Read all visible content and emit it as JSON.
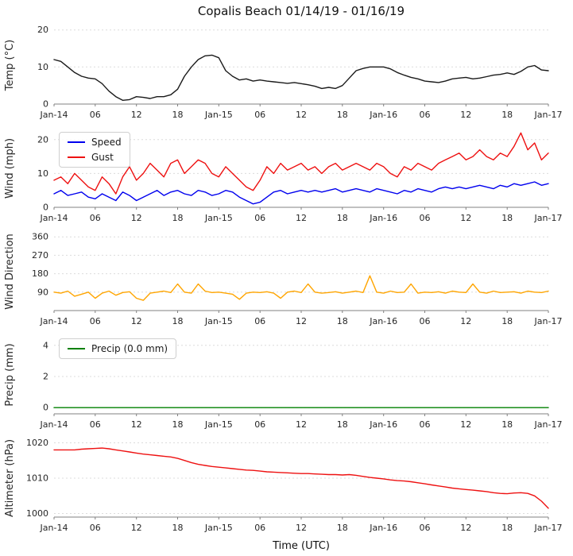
{
  "title": "Copalis Beach 01/14/19 - 01/16/19",
  "xlabel": "Time (UTC)",
  "x_range": [
    0,
    72
  ],
  "x_ticks": {
    "positions": [
      0,
      6,
      12,
      18,
      24,
      30,
      36,
      42,
      48,
      54,
      60,
      66,
      72
    ],
    "labels": [
      "Jan-14",
      "06",
      "12",
      "18",
      "Jan-15",
      "06",
      "12",
      "18",
      "Jan-16",
      "06",
      "12",
      "18",
      "Jan-17"
    ]
  },
  "x_hours": [
    0,
    1,
    2,
    3,
    4,
    5,
    6,
    7,
    8,
    9,
    10,
    11,
    12,
    13,
    14,
    15,
    16,
    17,
    18,
    19,
    20,
    21,
    22,
    23,
    24,
    25,
    26,
    27,
    28,
    29,
    30,
    31,
    32,
    33,
    34,
    35,
    36,
    37,
    38,
    39,
    40,
    41,
    42,
    43,
    44,
    45,
    46,
    47,
    48,
    49,
    50,
    51,
    52,
    53,
    54,
    55,
    56,
    57,
    58,
    59,
    60,
    61,
    62,
    63,
    64,
    65,
    66,
    67,
    68,
    69,
    70,
    71,
    72
  ],
  "chart_data": [
    {
      "type": "line",
      "name": "temperature",
      "ylabel": "Temp (°C)",
      "ylim": [
        0,
        21
      ],
      "yticks": [
        0,
        10,
        20
      ],
      "grid": true,
      "series": [
        {
          "key": "temp",
          "name": "Temp",
          "color": "#1a1a1a",
          "values": [
            12,
            11.5,
            10,
            8.5,
            7.5,
            7,
            6.8,
            5.5,
            3.5,
            2,
            1,
            1.2,
            2,
            1.8,
            1.5,
            2,
            2,
            2.5,
            4,
            7.5,
            10,
            12,
            13,
            13.2,
            12.5,
            9,
            7.5,
            6.5,
            6.8,
            6.2,
            6.5,
            6.2,
            6,
            5.8,
            5.6,
            5.8,
            5.5,
            5.2,
            4.8,
            4.2,
            4.5,
            4.2,
            5,
            7,
            9,
            9.6,
            10,
            10,
            10,
            9.5,
            8.5,
            7.8,
            7.2,
            6.8,
            6.2,
            6,
            5.8,
            6.2,
            6.8,
            7,
            7.2,
            6.8,
            7,
            7.4,
            7.8,
            8,
            8.4,
            8,
            8.8,
            10,
            10.4,
            9.2,
            9
          ]
        }
      ]
    },
    {
      "type": "line",
      "name": "wind",
      "ylabel": "Wind (mph)",
      "ylim": [
        0,
        23
      ],
      "yticks": [
        0,
        10,
        20
      ],
      "grid": true,
      "legend_position": "upper left",
      "series": [
        {
          "key": "speed",
          "name": "Speed",
          "color": "#0000ee",
          "values": [
            4,
            5,
            3.5,
            4,
            4.5,
            3,
            2.5,
            4,
            3,
            2,
            4.5,
            3.5,
            2,
            3,
            4,
            5,
            3.5,
            4.5,
            5,
            4,
            3.5,
            5,
            4.5,
            3.5,
            4,
            5,
            4.5,
            3,
            2,
            1,
            1.5,
            3,
            4.5,
            5,
            4,
            4.5,
            5,
            4.5,
            5,
            4.5,
            5,
            5.5,
            4.5,
            5,
            5.5,
            5,
            4.5,
            5.5,
            5,
            4.5,
            4,
            5,
            4.5,
            5.5,
            5,
            4.5,
            5.5,
            6,
            5.5,
            6,
            5.5,
            6,
            6.5,
            6,
            5.5,
            6.5,
            6,
            7,
            6.5,
            7,
            7.5,
            6.5,
            7
          ]
        },
        {
          "key": "gust",
          "name": "Gust",
          "color": "#ee1111",
          "values": [
            8,
            9,
            7,
            10,
            8,
            6,
            5,
            9,
            7,
            4,
            9,
            12,
            8,
            10,
            13,
            11,
            9,
            13,
            14,
            10,
            12,
            14,
            13,
            10,
            9,
            12,
            10,
            8,
            6,
            5,
            8,
            12,
            10,
            13,
            11,
            12,
            13,
            11,
            12,
            10,
            12,
            13,
            11,
            12,
            13,
            12,
            11,
            13,
            12,
            10,
            9,
            12,
            11,
            13,
            12,
            11,
            13,
            14,
            15,
            16,
            14,
            15,
            17,
            15,
            14,
            16,
            15,
            18,
            22,
            17,
            19,
            14,
            16
          ]
        }
      ]
    },
    {
      "type": "line",
      "name": "wind-direction",
      "ylabel": "Wind Direction",
      "ylim": [
        0,
        380
      ],
      "yticks": [
        90,
        180,
        270,
        360
      ],
      "grid": true,
      "series": [
        {
          "key": "direction",
          "name": "Wind Direction",
          "color": "#ffa500",
          "values": [
            90,
            85,
            95,
            70,
            80,
            90,
            60,
            85,
            95,
            75,
            88,
            92,
            60,
            50,
            85,
            90,
            95,
            88,
            130,
            90,
            85,
            130,
            95,
            88,
            90,
            85,
            80,
            55,
            85,
            90,
            88,
            92,
            85,
            60,
            90,
            95,
            88,
            130,
            90,
            85,
            88,
            92,
            85,
            90,
            95,
            88,
            170,
            90,
            85,
            95,
            88,
            90,
            130,
            85,
            90,
            88,
            92,
            85,
            95,
            90,
            88,
            130,
            90,
            85,
            95,
            88,
            90,
            92,
            85,
            95,
            90,
            88,
            95
          ]
        }
      ]
    },
    {
      "type": "line",
      "name": "precip",
      "ylabel": "Precip (mm)",
      "ylim": [
        -0.4,
        4.6
      ],
      "yticks": [
        0,
        2,
        4
      ],
      "grid": true,
      "legend_position": "upper left",
      "series": [
        {
          "key": "precip",
          "name": "Precip (0.0 mm)",
          "color": "#008000",
          "x": [
            0,
            72
          ],
          "values": [
            0,
            0
          ]
        }
      ]
    },
    {
      "type": "line",
      "name": "altimeter",
      "ylabel": "Altimeter (hPa)",
      "ylim": [
        999,
        1021
      ],
      "yticks": [
        1000,
        1010,
        1020
      ],
      "grid": true,
      "series": [
        {
          "key": "altimeter",
          "name": "Altimeter",
          "color": "#ee1111",
          "values": [
            1018,
            1018,
            1018,
            1018,
            1018.2,
            1018.3,
            1018.4,
            1018.5,
            1018.3,
            1018,
            1017.7,
            1017.4,
            1017.1,
            1016.8,
            1016.6,
            1016.4,
            1016.2,
            1016,
            1015.6,
            1015,
            1014.4,
            1013.9,
            1013.6,
            1013.3,
            1013.1,
            1012.9,
            1012.7,
            1012.5,
            1012.3,
            1012.2,
            1012,
            1011.8,
            1011.7,
            1011.6,
            1011.5,
            1011.4,
            1011.3,
            1011.3,
            1011.2,
            1011.1,
            1011,
            1011,
            1010.9,
            1011,
            1010.8,
            1010.5,
            1010.2,
            1010,
            1009.8,
            1009.5,
            1009.3,
            1009.2,
            1009,
            1008.7,
            1008.4,
            1008.1,
            1007.8,
            1007.5,
            1007.2,
            1007,
            1006.8,
            1006.6,
            1006.4,
            1006.2,
            1005.9,
            1005.7,
            1005.6,
            1005.8,
            1005.9,
            1005.7,
            1005,
            1003.5,
            1001.5
          ]
        }
      ]
    }
  ]
}
